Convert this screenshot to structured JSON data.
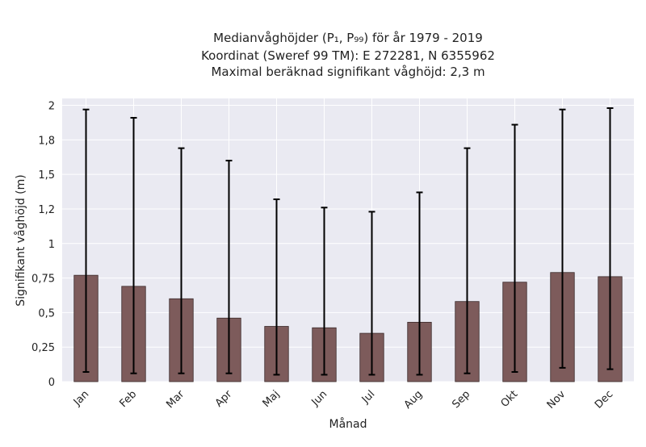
{
  "chart_data": {
    "type": "bar",
    "title_lines": [
      "Medianvåghöjder (P₁, P₉₉) för år 1979 - 2019",
      "Koordinat (Sweref 99 TM): E 272281, N 6355962",
      "Maximal beräknad signifikant våghöjd: 2,3 m"
    ],
    "xlabel": "Månad",
    "ylabel": "Signifikant våghöjd (m)",
    "categories": [
      "Jan",
      "Feb",
      "Mar",
      "Apr",
      "Maj",
      "Jun",
      "Jul",
      "Aug",
      "Sep",
      "Okt",
      "Nov",
      "Dec"
    ],
    "values": [
      0.77,
      0.69,
      0.6,
      0.46,
      0.4,
      0.39,
      0.35,
      0.43,
      0.58,
      0.72,
      0.79,
      0.76
    ],
    "error_low": [
      0.07,
      0.06,
      0.06,
      0.06,
      0.05,
      0.05,
      0.05,
      0.05,
      0.06,
      0.07,
      0.1,
      0.09
    ],
    "error_high": [
      1.97,
      1.91,
      1.69,
      1.6,
      1.32,
      1.26,
      1.23,
      1.37,
      1.69,
      1.86,
      1.97,
      1.98
    ],
    "ylim": [
      0,
      2.05
    ],
    "yticks": [
      0,
      0.25,
      0.5,
      0.75,
      1.0,
      1.25,
      1.5,
      1.75,
      2.0
    ],
    "ytick_labels": [
      "0",
      "0,25",
      "0,5",
      "0,75",
      "1",
      "1,2",
      "1,5",
      "1,8",
      "2"
    ],
    "grid": true,
    "colors": {
      "bar": "#7d5b5b",
      "bar_edge": "#3a2a2a",
      "plot_bg": "#eaeaf2",
      "grid": "#ffffff",
      "error": "#000000"
    }
  }
}
